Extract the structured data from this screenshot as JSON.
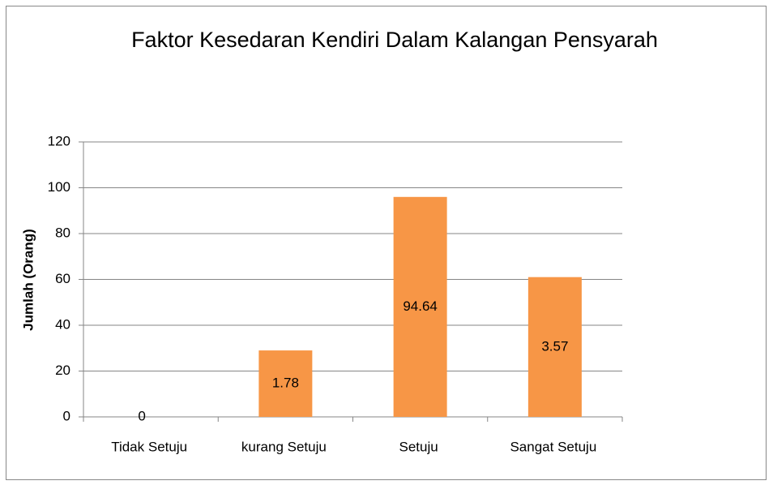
{
  "chart_data": {
    "type": "bar",
    "title": "Faktor Kesedaran Kendiri Dalam Kalangan Pensyarah",
    "y_label": "Jumlah (Orang)",
    "categories": [
      "Tidak Setuju",
      "kurang Setuju",
      "Setuju",
      "Sangat  Setuju"
    ],
    "values": [
      0,
      29,
      96,
      61
    ],
    "bar_annotations": [
      "0",
      "1.78",
      "94.64",
      "3.57"
    ],
    "color": "#f79646",
    "ylim": [
      0,
      120
    ],
    "yticks": [
      0,
      20,
      40,
      60,
      80,
      100,
      120
    ],
    "grid": true
  }
}
